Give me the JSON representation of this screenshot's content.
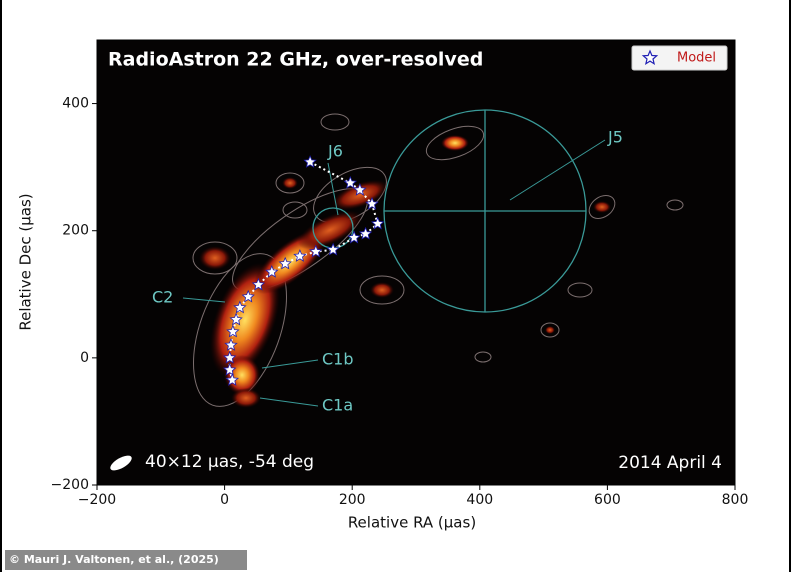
{
  "chart_data": {
    "type": "scatter",
    "title": "RadioAstron 22 GHz, over-resolved",
    "xlabel": "Relative RA (μas)",
    "ylabel": "Relative Dec (μas)",
    "xlim": [
      -200,
      800
    ],
    "ylim": [
      -200,
      500
    ],
    "xticks": [
      {
        "value": -200,
        "label": "−200"
      },
      0,
      200,
      400,
      600,
      800
    ],
    "yticks": [
      {
        "value": -200,
        "label": "−200"
      },
      0,
      200,
      400
    ],
    "legend": "upper right",
    "series": [
      {
        "name": "Model",
        "color": "#1f1fb4",
        "x": [
          134,
          197,
          212,
          231,
          240,
          221,
          203,
          170,
          143,
          118,
          95,
          74,
          53,
          37,
          24,
          18,
          13,
          10,
          8,
          8,
          12
        ],
        "values": [
          308,
          275,
          264,
          242,
          211,
          195,
          189,
          170,
          167,
          160,
          148,
          135,
          115,
          96,
          79,
          60,
          41,
          20,
          0,
          -19,
          -35
        ]
      }
    ],
    "annotations": [
      "J6",
      "J5",
      "C2",
      "C1b",
      "C1a",
      "40×12 μas, -54 deg",
      "2014 April 4"
    ],
    "credit": "© Mauri J. Valtonen, et al., (2025)"
  }
}
